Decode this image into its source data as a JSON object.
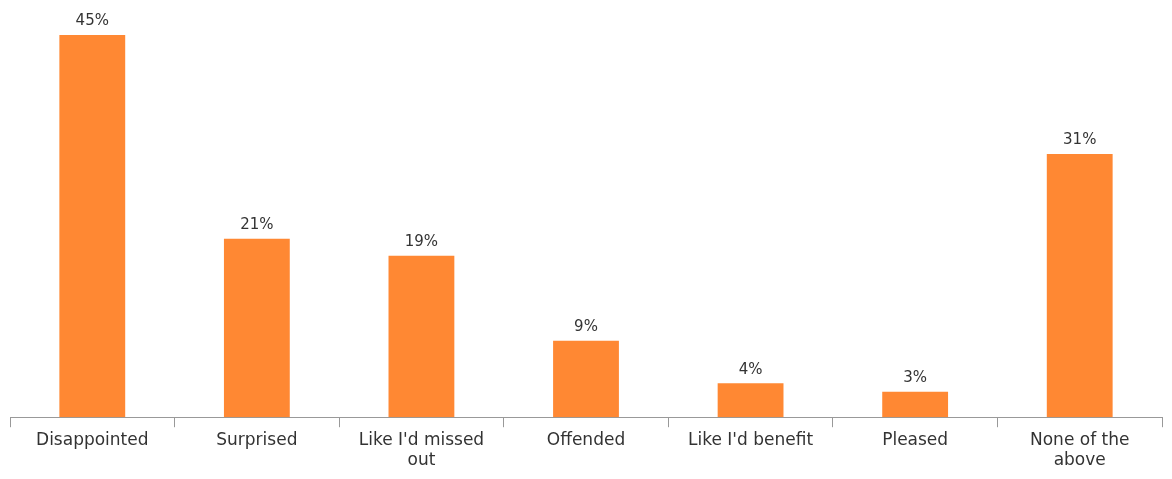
{
  "chart_data": {
    "type": "bar",
    "categories": [
      "Disappointed",
      "Surprised",
      "Like I'd missed out",
      "Offended",
      "Like I'd benefit",
      "Pleased",
      "None of the above"
    ],
    "values": [
      45,
      21,
      19,
      9,
      4,
      3,
      31
    ],
    "value_labels": [
      "45%",
      "21%",
      "19%",
      "9%",
      "4%",
      "3%",
      "31%"
    ],
    "color": "#ff8833",
    "grid": false,
    "legend": false,
    "tick_labels": "x"
  }
}
